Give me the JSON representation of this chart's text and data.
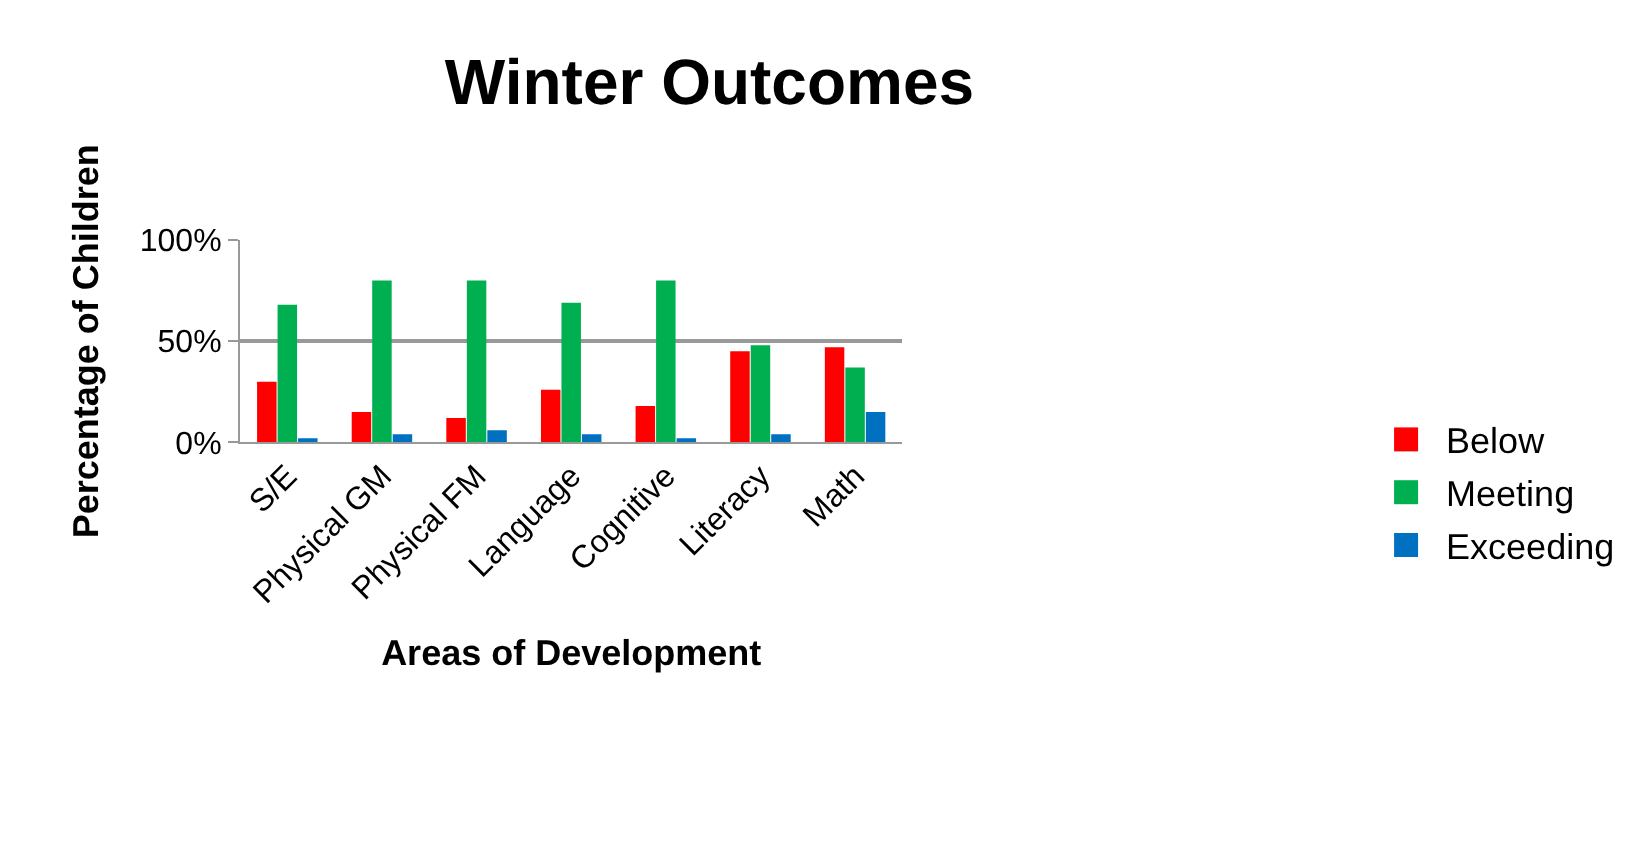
{
  "chart_data": {
    "type": "bar",
    "title": "Winter Outcomes",
    "xlabel": "Areas of Development",
    "ylabel": "Percentage of Children",
    "categories": [
      "S/E",
      "Physical GM",
      "Physical FM",
      "Language",
      "Cognitive",
      "Literacy",
      "Math"
    ],
    "series": [
      {
        "name": "Below",
        "color": "#ff0000",
        "values": [
          30,
          15,
          12,
          26,
          18,
          45,
          47
        ]
      },
      {
        "name": "Meeting",
        "color": "#00b050",
        "values": [
          68,
          80,
          80,
          69,
          80,
          48,
          37
        ]
      },
      {
        "name": "Exceeding",
        "color": "#0070c0",
        "values": [
          2,
          4,
          6,
          4,
          2,
          4,
          15
        ]
      }
    ],
    "ylim": [
      0,
      100
    ],
    "yticks": [
      {
        "value": 0,
        "label": "0%"
      },
      {
        "value": 50,
        "label": "50%"
      },
      {
        "value": 100,
        "label": "100%"
      }
    ],
    "grid": "y",
    "legend": "right"
  }
}
